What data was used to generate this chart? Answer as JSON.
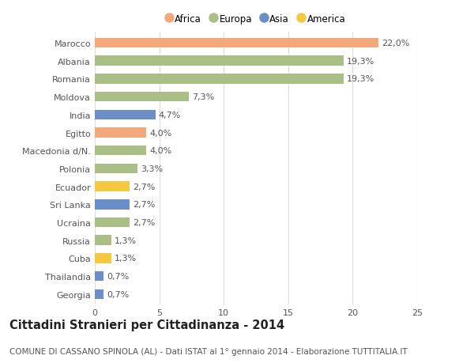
{
  "categories": [
    "Marocco",
    "Albania",
    "Romania",
    "Moldova",
    "India",
    "Egitto",
    "Macedonia d/N.",
    "Polonia",
    "Ecuador",
    "Sri Lanka",
    "Ucraina",
    "Russia",
    "Cuba",
    "Thailandia",
    "Georgia"
  ],
  "values": [
    22.0,
    19.3,
    19.3,
    7.3,
    4.7,
    4.0,
    4.0,
    3.3,
    2.7,
    2.7,
    2.7,
    1.3,
    1.3,
    0.7,
    0.7
  ],
  "labels": [
    "22,0%",
    "19,3%",
    "19,3%",
    "7,3%",
    "4,7%",
    "4,0%",
    "4,0%",
    "3,3%",
    "2,7%",
    "2,7%",
    "2,7%",
    "1,3%",
    "1,3%",
    "0,7%",
    "0,7%"
  ],
  "continents": [
    "Africa",
    "Europa",
    "Europa",
    "Europa",
    "Asia",
    "Africa",
    "Europa",
    "Europa",
    "America",
    "Asia",
    "Europa",
    "Europa",
    "America",
    "Asia",
    "Asia"
  ],
  "colors": {
    "Africa": "#F4A97C",
    "Europa": "#AABF85",
    "Asia": "#6B8EC7",
    "America": "#F5C842"
  },
  "xlim": [
    0,
    25
  ],
  "xticks": [
    0,
    5,
    10,
    15,
    20,
    25
  ],
  "title": "Cittadini Stranieri per Cittadinanza - 2014",
  "subtitle": "COMUNE DI CASSANO SPINOLA (AL) - Dati ISTAT al 1° gennaio 2014 - Elaborazione TUTTITALIA.IT",
  "background_color": "#ffffff",
  "grid_color": "#dddddd",
  "bar_height": 0.55,
  "title_fontsize": 10.5,
  "subtitle_fontsize": 7.5,
  "label_fontsize": 8,
  "tick_fontsize": 8,
  "legend_entries": [
    "Africa",
    "Europa",
    "Asia",
    "America"
  ]
}
